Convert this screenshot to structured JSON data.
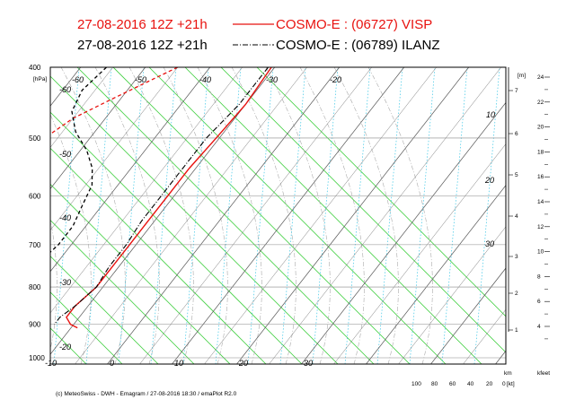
{
  "titles": {
    "line1_prefix": "27-08-2016  12Z +21h",
    "line1_suffix": "COSMO-E : (06727)  VISP",
    "line2_prefix": "27-08-2016  12Z +21h",
    "line2_suffix": "COSMO-E : (06789)  ILANZ"
  },
  "colors": {
    "visp": "#e8120f",
    "ilanz": "#000000",
    "isotherm": "#555555",
    "dry_adiabat": "#3fcf3f",
    "moist_adiabat": "#aaaaaa",
    "mixing_ratio": "#39c6e6"
  },
  "footer": "(c) MeteoSwiss - DWH - Emagram / 27-08-2016  18:30 / emaPlot R2.0",
  "axes": {
    "pressure_unit": "[hPa]",
    "height_unit_m": "[m]",
    "km_label": "km",
    "kfeet_label": "kfeet",
    "wind_unit": "[kt]"
  },
  "chart_data": {
    "type": "line",
    "pressure_ticks": [
      "400",
      "500",
      "600",
      "700",
      "800",
      "900",
      "1000"
    ],
    "isotherm_labels": [
      "-60",
      "-50",
      "-40",
      "-30",
      "-20",
      "-10",
      "0",
      "10",
      "20",
      "30"
    ],
    "isotherm_labels_left": [
      "-60",
      "-50",
      "-40",
      "-30",
      "-20"
    ],
    "height_km_ticks": [
      "1",
      "2",
      "3",
      "4",
      "5",
      "6",
      "7"
    ],
    "mixing_ratio_labels": [
      "10",
      "20",
      "30"
    ],
    "kfeet_ticks": [
      "4",
      "6",
      "8",
      "10",
      "12",
      "14",
      "16",
      "18",
      "20",
      "22",
      "24"
    ],
    "wind_scale": [
      "100",
      "80",
      "60",
      "40",
      "20",
      "0"
    ],
    "series": [
      {
        "key": "visp_temp",
        "style": "solid",
        "points": [
          [
            400,
            -20.5
          ],
          [
            450,
            -20
          ],
          [
            500,
            -20.5
          ],
          [
            550,
            -21
          ],
          [
            600,
            -21
          ],
          [
            650,
            -21
          ],
          [
            700,
            -21
          ],
          [
            750,
            -21
          ],
          [
            800,
            -21
          ],
          [
            850,
            -22
          ],
          [
            880,
            -22
          ],
          [
            900,
            -20.5
          ],
          [
            910,
            -19
          ]
        ]
      },
      {
        "key": "visp_dew",
        "style": "dashed",
        "points": [
          [
            400,
            -35
          ],
          [
            440,
            -41
          ],
          [
            470,
            -45
          ],
          [
            500,
            -47
          ],
          [
            530,
            -47
          ],
          [
            560,
            -45
          ],
          [
            590,
            -43
          ],
          [
            620,
            -41
          ],
          [
            650,
            -42
          ],
          [
            700,
            -42
          ],
          [
            750,
            -42
          ],
          [
            800,
            -43
          ],
          [
            850,
            -44
          ],
          [
            890,
            -45
          ],
          [
            900,
            -44
          ]
        ]
      },
      {
        "key": "ilanz_temp",
        "style": "dashdot",
        "points": [
          [
            400,
            -21
          ],
          [
            450,
            -21
          ],
          [
            500,
            -22
          ],
          [
            550,
            -22
          ],
          [
            600,
            -22
          ],
          [
            650,
            -22
          ],
          [
            700,
            -21.5
          ],
          [
            750,
            -21.5
          ],
          [
            800,
            -21
          ],
          [
            850,
            -22
          ],
          [
            880,
            -23
          ],
          [
            900,
            -23
          ]
        ]
      },
      {
        "key": "ilanz_dew",
        "style": "dashed",
        "points": [
          [
            400,
            -46
          ],
          [
            430,
            -47
          ],
          [
            460,
            -46
          ],
          [
            490,
            -43
          ],
          [
            520,
            -39
          ],
          [
            550,
            -36
          ],
          [
            580,
            -34
          ],
          [
            620,
            -33
          ],
          [
            660,
            -32
          ],
          [
            700,
            -32
          ],
          [
            750,
            -33
          ],
          [
            800,
            -35
          ],
          [
            850,
            -36
          ],
          [
            880,
            -37
          ],
          [
            900,
            -36
          ]
        ]
      }
    ]
  }
}
